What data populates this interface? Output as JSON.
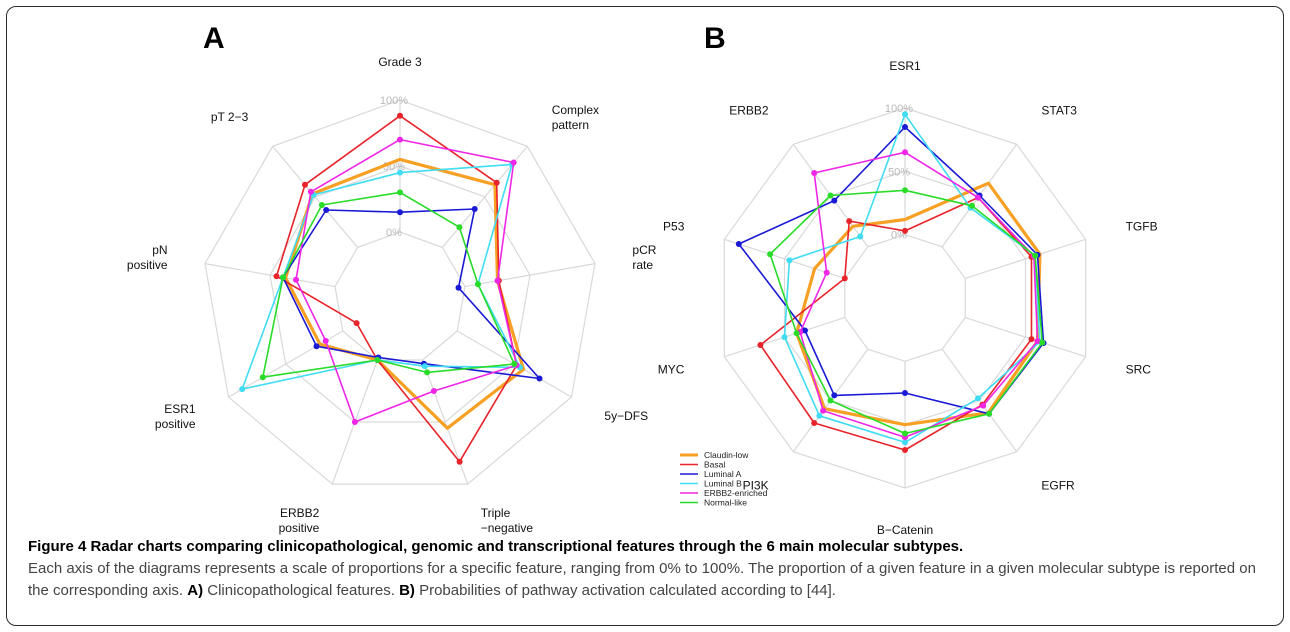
{
  "panels": {
    "a_letter": "A",
    "b_letter": "B"
  },
  "caption": {
    "title": "Figure 4 Radar charts comparing clinicopathological, genomic and transcriptional features through the 6 main molecular subtypes.",
    "body_1": "Each axis of the diagrams represents a scale of proportions for a specific feature, ranging from 0% to 100%. The proportion of a given feature in a given molecular subtype is reported on the corresponding axis.",
    "a_ref": "A)",
    "a_text": "Clinicopathological features.",
    "b_ref": "B)",
    "b_text": "Probabilities of pathway activation calculated according to [44]."
  },
  "chart_data": [
    {
      "type": "radar",
      "panel": "A",
      "axes": [
        "Grade 3",
        "Complex\npattern",
        "pCR\nrate",
        "5y−DFS",
        "Triple\n−negative",
        "ERBB2\npositive",
        "ESR1\npositive",
        "pN\npositive",
        "pT 2−3"
      ],
      "rings": [
        0,
        50,
        100
      ],
      "ring_labels": [
        "0%",
        "50%",
        "100%"
      ],
      "range": [
        -50,
        100
      ],
      "series": [
        {
          "name": "Claudin-low",
          "color": "#f7a023",
          "values": [
            55,
            62,
            25,
            58,
            55,
            0,
            20,
            38,
            53
          ]
        },
        {
          "name": "Basal",
          "color": "#e8232a",
          "values": [
            88,
            64,
            26,
            52,
            82,
            0,
            -12,
            45,
            62
          ]
        },
        {
          "name": "Luminal A",
          "color": "#1a1ad6",
          "values": [
            15,
            38,
            -5,
            72,
            3,
            -2,
            23,
            40,
            37
          ]
        },
        {
          "name": "Luminal B",
          "color": "#3fdcf2",
          "values": [
            45,
            82,
            10,
            55,
            5,
            0,
            88,
            40,
            52
          ]
        },
        {
          "name": "ERBB2-enriched",
          "color": "#f026e6",
          "values": [
            70,
            84,
            25,
            52,
            25,
            50,
            15,
            30,
            55
          ]
        },
        {
          "name": "Normal-like",
          "color": "#28dc28",
          "values": [
            30,
            20,
            10,
            50,
            10,
            0,
            70,
            40,
            42
          ]
        }
      ]
    },
    {
      "type": "radar",
      "panel": "B",
      "axes": [
        "ESR1",
        "STAT3",
        "TGFB",
        "SRC",
        "EGFR",
        "B−Catenin",
        "PI3K",
        "MYC",
        "P53",
        "ERBB2"
      ],
      "rings": [
        0,
        50,
        100
      ],
      "ring_labels": [
        "0%",
        "50%",
        "100%"
      ],
      "range": [
        -50,
        100
      ],
      "series": [
        {
          "name": "Claudin-low",
          "color": "#f7a023",
          "values": [
            12,
            62,
            62,
            60,
            62,
            50,
            58,
            40,
            25,
            20
          ]
        },
        {
          "name": "Basal",
          "color": "#e8232a",
          "values": [
            3,
            48,
            55,
            55,
            54,
            70,
            72,
            70,
            0,
            25
          ]
        },
        {
          "name": "Luminal A",
          "color": "#1a1ad6",
          "values": [
            85,
            50,
            60,
            65,
            63,
            25,
            45,
            33,
            88,
            45
          ]
        },
        {
          "name": "Luminal B",
          "color": "#3fdcf2",
          "values": [
            95,
            38,
            58,
            62,
            48,
            64,
            65,
            50,
            46,
            10
          ]
        },
        {
          "name": "ERBB2-enriched",
          "color": "#f026e6",
          "values": [
            65,
            48,
            57,
            60,
            55,
            60,
            60,
            37,
            15,
            72
          ]
        },
        {
          "name": "Normal-like",
          "color": "#28dc28",
          "values": [
            35,
            40,
            58,
            64,
            63,
            57,
            50,
            40,
            62,
            50
          ]
        }
      ]
    }
  ]
}
